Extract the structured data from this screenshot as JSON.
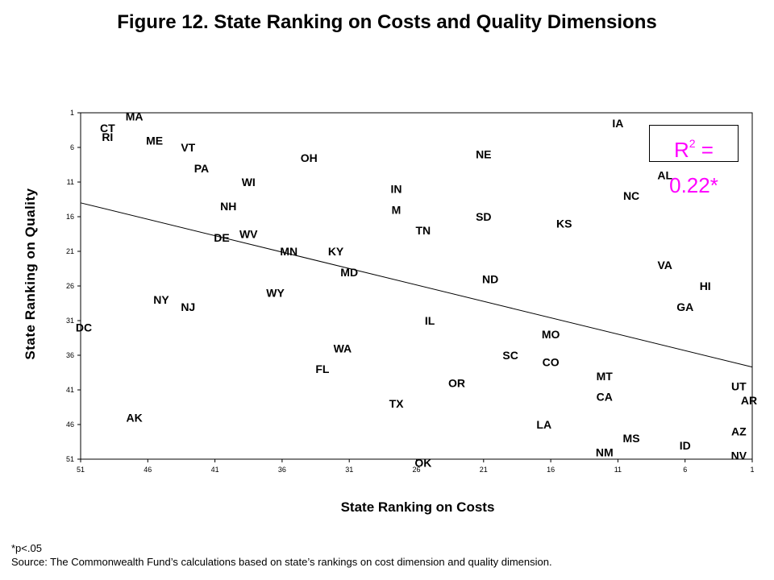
{
  "title": "Figure 12. State Ranking on Costs and Quality Dimensions",
  "footnote": "*p<.05",
  "source": "Source: The Commonwealth Fund’s calculations based on state’s rankings on cost dimension and quality dimension.",
  "annotation": {
    "r_label": "R",
    "r_exp": "2",
    "r_value": " = 0.22*",
    "color": "#ff00ff"
  },
  "chart_data": {
    "type": "scatter",
    "title": "Figure 12. State Ranking on Costs and Quality Dimensions",
    "xlabel": "State Ranking on Costs",
    "ylabel": "State Ranking on Quality",
    "xlim": [
      51,
      1
    ],
    "ylim": [
      51,
      1
    ],
    "x_reversed": true,
    "y_reversed": true,
    "xticks": [
      51,
      46,
      41,
      36,
      31,
      26,
      21,
      16,
      11,
      6,
      1
    ],
    "yticks": [
      1,
      6,
      11,
      16,
      21,
      26,
      31,
      36,
      41,
      46,
      51
    ],
    "grid": false,
    "legend": "none",
    "trendline": {
      "x": [
        51,
        1
      ],
      "y": [
        14,
        37.7
      ]
    },
    "points": [
      {
        "label": "MA",
        "x": 47,
        "y": 1.5
      },
      {
        "label": "CT",
        "x": 49,
        "y": 3.2
      },
      {
        "label": "RI",
        "x": 49,
        "y": 4.5
      },
      {
        "label": "ME",
        "x": 45.5,
        "y": 5
      },
      {
        "label": "VT",
        "x": 43,
        "y": 6
      },
      {
        "label": "PA",
        "x": 42,
        "y": 9
      },
      {
        "label": "OH",
        "x": 34,
        "y": 7.5
      },
      {
        "label": "WI",
        "x": 38.5,
        "y": 11
      },
      {
        "label": "NE",
        "x": 21,
        "y": 7
      },
      {
        "label": "IA",
        "x": 11,
        "y": 2.5
      },
      {
        "label": "AL",
        "x": 7.5,
        "y": 10
      },
      {
        "label": "NC",
        "x": 10,
        "y": 13
      },
      {
        "label": "IN",
        "x": 27.5,
        "y": 12
      },
      {
        "label": "M",
        "x": 27.5,
        "y": 15
      },
      {
        "label": "NH",
        "x": 40,
        "y": 14.5
      },
      {
        "label": "SD",
        "x": 21,
        "y": 16
      },
      {
        "label": "KS",
        "x": 15,
        "y": 17
      },
      {
        "label": "TN",
        "x": 25.5,
        "y": 18
      },
      {
        "label": "DE",
        "x": 40.5,
        "y": 19
      },
      {
        "label": "WV",
        "x": 38.5,
        "y": 18.5
      },
      {
        "label": "MN",
        "x": 35.5,
        "y": 21
      },
      {
        "label": "KY",
        "x": 32,
        "y": 21
      },
      {
        "label": "VA",
        "x": 7.5,
        "y": 23
      },
      {
        "label": "MD",
        "x": 31,
        "y": 24
      },
      {
        "label": "ND",
        "x": 20.5,
        "y": 25
      },
      {
        "label": "HI",
        "x": 4.5,
        "y": 26
      },
      {
        "label": "WY",
        "x": 36.5,
        "y": 27
      },
      {
        "label": "NY",
        "x": 45,
        "y": 28
      },
      {
        "label": "NJ",
        "x": 43,
        "y": 29
      },
      {
        "label": "GA",
        "x": 6,
        "y": 29
      },
      {
        "label": "DC",
        "x": 51,
        "y": 32
      },
      {
        "label": "IL",
        "x": 25,
        "y": 31
      },
      {
        "label": "MO",
        "x": 16,
        "y": 33
      },
      {
        "label": "WA",
        "x": 31.5,
        "y": 35
      },
      {
        "label": "SC",
        "x": 19,
        "y": 36
      },
      {
        "label": "CO",
        "x": 16,
        "y": 37
      },
      {
        "label": "FL",
        "x": 33,
        "y": 38
      },
      {
        "label": "MT",
        "x": 12,
        "y": 39
      },
      {
        "label": "OR",
        "x": 23,
        "y": 40
      },
      {
        "label": "UT",
        "x": 2,
        "y": 40.5
      },
      {
        "label": "CA",
        "x": 12,
        "y": 42
      },
      {
        "label": "AR",
        "x": 1,
        "y": 42.5
      },
      {
        "label": "TX",
        "x": 27.5,
        "y": 43
      },
      {
        "label": "AK",
        "x": 47,
        "y": 45
      },
      {
        "label": "LA",
        "x": 16.5,
        "y": 46
      },
      {
        "label": "AZ",
        "x": 2,
        "y": 47
      },
      {
        "label": "MS",
        "x": 10,
        "y": 48
      },
      {
        "label": "ID",
        "x": 6,
        "y": 49
      },
      {
        "label": "NM",
        "x": 12,
        "y": 50
      },
      {
        "label": "NV",
        "x": 2,
        "y": 50.5
      },
      {
        "label": "OK",
        "x": 25.5,
        "y": 51.5
      }
    ]
  }
}
